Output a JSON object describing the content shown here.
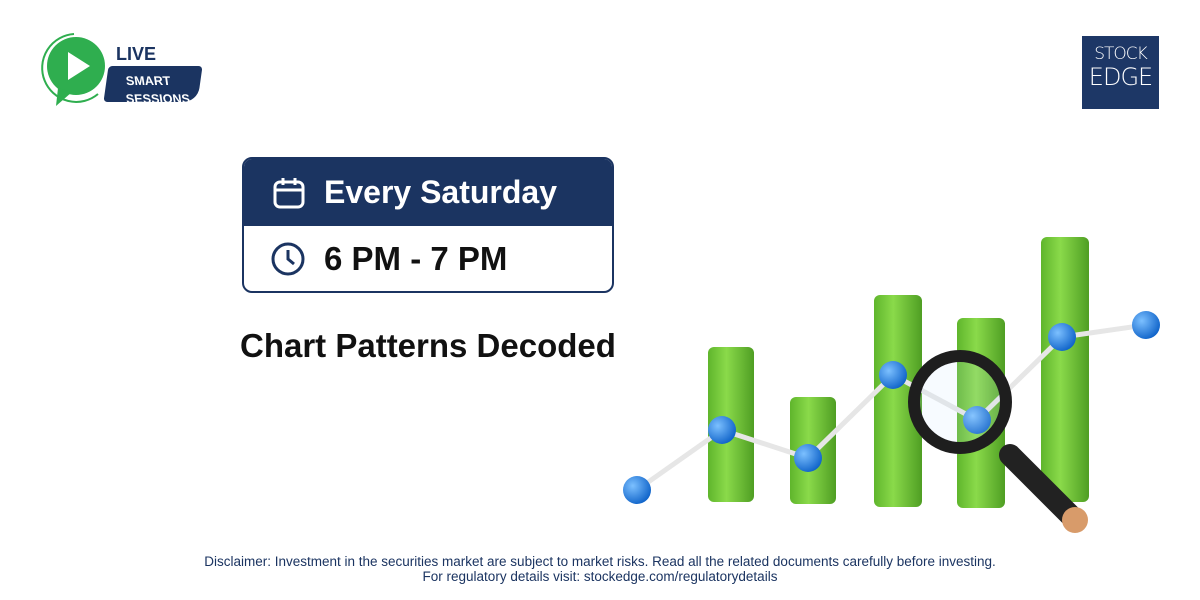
{
  "brand": {
    "live": "LIVE",
    "smart_sessions_line1": "SMART",
    "smart_sessions_line2": "SESSIONS",
    "logo_line1": "STOCK",
    "logo_line2": "EDGE"
  },
  "schedule": {
    "day_icon": "calendar-icon",
    "day": "Every Saturday",
    "time_icon": "clock-icon",
    "time": "6 PM - 7 PM"
  },
  "session_title": "Chart Patterns Decoded",
  "disclaimer": {
    "line1": "Disclaimer: Investment in the securities market are subject to market risks. Read all the related documents carefully before investing.",
    "line2": "For regulatory details visit: stockedge.com/regulatorydetails"
  },
  "colors": {
    "navy": "#1b3461",
    "green": "#2fae4f",
    "bar_green": "#7ccf3f",
    "dot_blue": "#1f7fe0"
  }
}
